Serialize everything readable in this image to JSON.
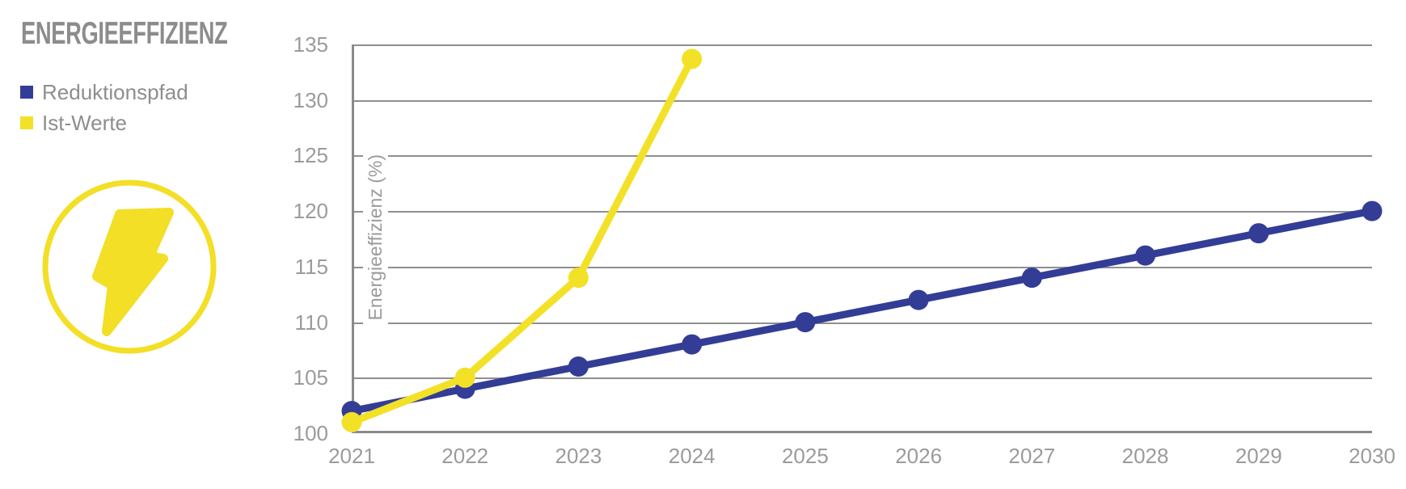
{
  "title": "ENERGIEEFFIZIENZ",
  "legend": [
    {
      "label": "Reduktionspfad",
      "color": "#333d96"
    },
    {
      "label": "Ist-Werte",
      "color": "#f2e127"
    }
  ],
  "icon": {
    "name": "lightning-icon",
    "color": "#f2df26"
  },
  "chart_data": {
    "type": "line",
    "title": "ENERGIEEFFIZIENZ",
    "x": [
      2021,
      2022,
      2023,
      2024,
      2025,
      2026,
      2027,
      2028,
      2029,
      2030
    ],
    "xlabel": "",
    "ylabel": "Energieeffizienz (%)",
    "ylim": [
      100,
      135
    ],
    "y_ticks": [
      135,
      130,
      125,
      120,
      115,
      110,
      105,
      100
    ],
    "grid": "horizontal",
    "legend_position": "left",
    "series": [
      {
        "name": "Reduktionspfad",
        "color": "#333d96",
        "values": [
          102,
          104,
          106,
          108,
          110,
          112,
          114,
          116,
          118,
          120
        ]
      },
      {
        "name": "Ist-Werte",
        "color": "#f2e127",
        "values": [
          101,
          105,
          114,
          133.7
        ]
      }
    ]
  }
}
